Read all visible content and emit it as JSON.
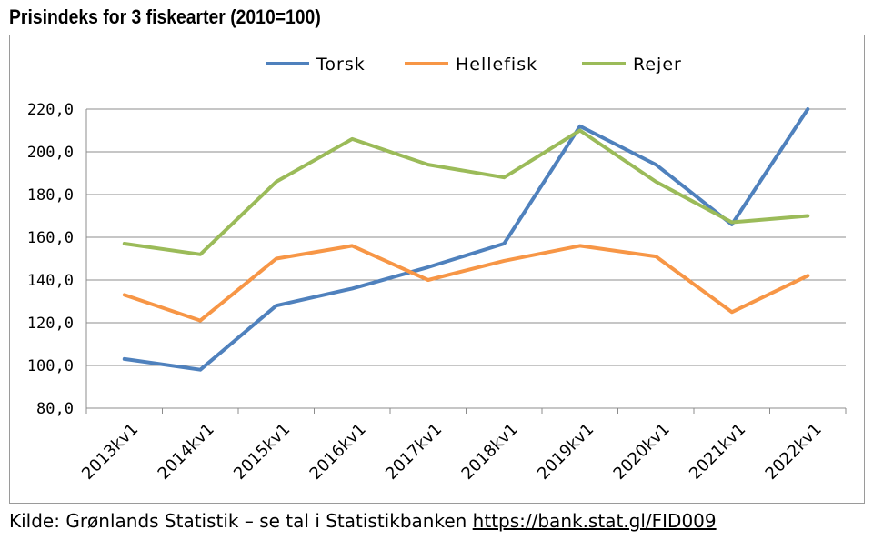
{
  "title": "Prisindeks for 3 fiskearter (2010=100)",
  "source": {
    "text": "Kilde: Grønlands Statistik – se tal i Statistikbanken",
    "link": "https://bank.stat.gl/FID009"
  },
  "chart_data": {
    "type": "line",
    "title": "Prisindeks for 3 fiskearter (2010=100)",
    "xlabel": "",
    "ylabel": "",
    "categories": [
      "2013kv1",
      "2014kv1",
      "2015kv1",
      "2016kv1",
      "2017kv1",
      "2018kv1",
      "2019kv1",
      "2020kv1",
      "2021kv1",
      "2022kv1"
    ],
    "ylim": [
      80,
      220
    ],
    "yticks": [
      80,
      100,
      120,
      140,
      160,
      180,
      200,
      220
    ],
    "ytick_labels": [
      "80,0",
      "100,0",
      "120,0",
      "140,0",
      "160,0",
      "180,0",
      "200,0",
      "220,0"
    ],
    "grid": true,
    "legend_position": "top",
    "series": [
      {
        "name": "Torsk",
        "color": "#4f81bd",
        "values": [
          103,
          98,
          128,
          136,
          146,
          157,
          212,
          194,
          166,
          220
        ]
      },
      {
        "name": "Hellefisk",
        "color": "#f79646",
        "values": [
          133,
          121,
          150,
          156,
          140,
          149,
          156,
          151,
          125,
          142
        ]
      },
      {
        "name": "Rejer",
        "color": "#9bbb59",
        "values": [
          157,
          152,
          186,
          206,
          194,
          188,
          210,
          186,
          167,
          170
        ]
      }
    ]
  }
}
